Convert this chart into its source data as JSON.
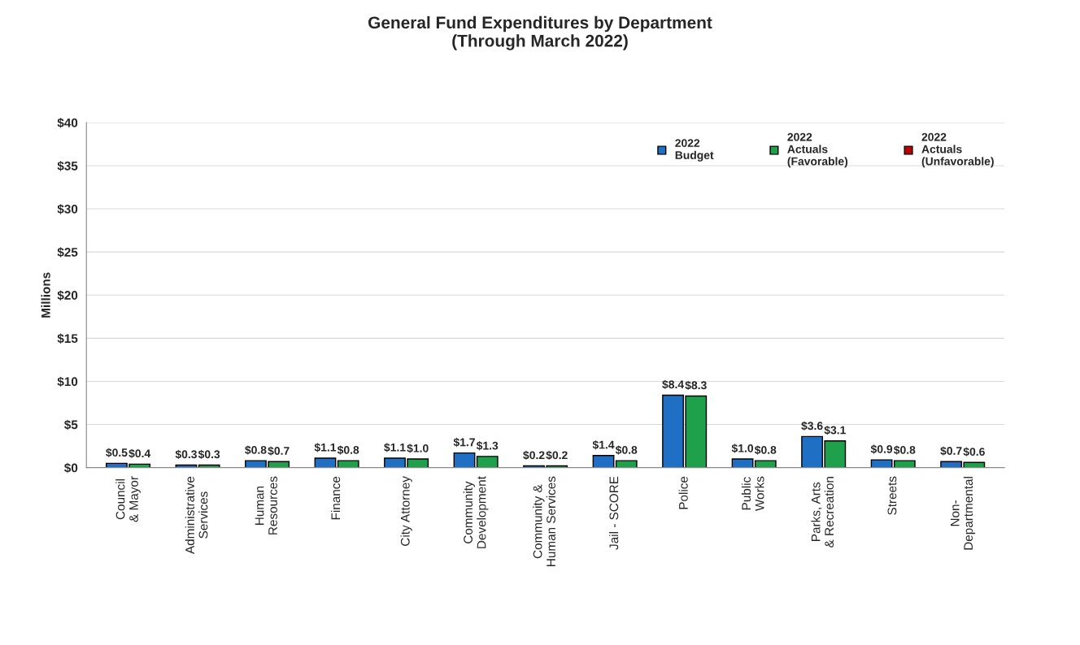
{
  "chart_data": {
    "type": "bar",
    "title": "General Fund Expenditures by Department\n(Through March 2022)",
    "ylabel": "Millions",
    "categories": [
      "Council\n& Mayor",
      "Administrative\nServices",
      "Human\nResources",
      "Finance",
      "City Attorney",
      "Community\nDevelopment",
      "Community &\nHuman Services",
      "Jail - SCORE",
      "Police",
      "Public\nWorks",
      "Parks, Arts\n& Recreation",
      "Streets",
      "Non-\nDepartmental"
    ],
    "series": [
      {
        "name": "2022\nBudget",
        "color": "#1f6fc4",
        "values": [
          0.5,
          0.3,
          0.8,
          1.1,
          1.1,
          1.7,
          0.2,
          1.4,
          8.4,
          1.0,
          3.6,
          0.9,
          0.7
        ],
        "value_labels": [
          "$0.5",
          "$0.3",
          "$0.8",
          "$1.1",
          "$1.1",
          "$1.7",
          "$0.2",
          "$1.4",
          "$8.4",
          "$1.0",
          "$3.6",
          "$0.9",
          "$0.7"
        ]
      },
      {
        "name": "2022\nActuals\n(Favorable)",
        "color": "#1fa04a",
        "values": [
          0.4,
          0.3,
          0.7,
          0.8,
          1.0,
          1.3,
          0.2,
          0.8,
          8.3,
          0.8,
          3.1,
          0.8,
          0.6
        ],
        "value_labels": [
          "$0.4",
          "$0.3",
          "$0.7",
          "$0.8",
          "$1.0",
          "$1.3",
          "$0.2",
          "$0.8",
          "$8.3",
          "$0.8",
          "$3.1",
          "$0.8",
          "$0.6"
        ]
      },
      {
        "name": "2022\nActuals\n(Unfavorable)",
        "color": "#c00000",
        "values": [
          null,
          null,
          null,
          null,
          null,
          null,
          null,
          null,
          null,
          null,
          null,
          null,
          null
        ]
      }
    ],
    "ylim": [
      0,
      40
    ],
    "yticks": [
      {
        "value": 0,
        "label": "$0"
      },
      {
        "value": 5,
        "label": "$5"
      },
      {
        "value": 10,
        "label": "$10"
      },
      {
        "value": 15,
        "label": "$15"
      },
      {
        "value": 20,
        "label": "$20"
      },
      {
        "value": 25,
        "label": "$25"
      },
      {
        "value": 30,
        "label": "$30"
      },
      {
        "value": 35,
        "label": "$35"
      },
      {
        "value": 40,
        "label": "$40"
      }
    ],
    "grid": "y",
    "legend": "top right"
  }
}
